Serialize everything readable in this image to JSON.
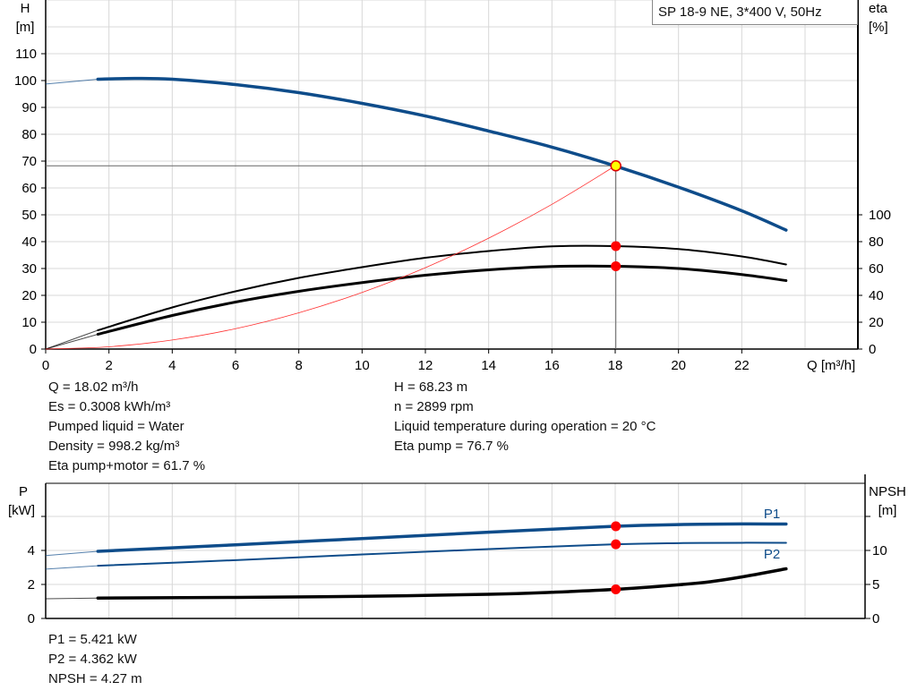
{
  "chart_data": [
    {
      "type": "line",
      "title": "SP 18-9 NE, 3*400 V, 50Hz",
      "xlabel": "Q [m³/h]",
      "ylabel_left": [
        "H",
        "[m]"
      ],
      "ylabel_right": [
        "eta",
        "[%]"
      ],
      "xlim": [
        0,
        25.7
      ],
      "ylim_left": [
        0,
        130
      ],
      "ylim_right": [
        0,
        260
      ],
      "xticks": [
        0,
        2,
        4,
        6,
        8,
        10,
        12,
        14,
        16,
        18,
        20,
        22
      ],
      "yticks_left": [
        0,
        10,
        20,
        30,
        40,
        50,
        60,
        70,
        80,
        90,
        100,
        110
      ],
      "yticks_right": [
        0,
        20,
        40,
        60,
        80,
        100
      ],
      "grid": true,
      "series": [
        {
          "key": "H",
          "axis": "left",
          "color": "#0e4c8a",
          "x": [
            0,
            1.65,
            2.8,
            4,
            6,
            8,
            10,
            12,
            14,
            16,
            18,
            20,
            22,
            23.4
          ],
          "y": [
            98.7,
            100.5,
            100.8,
            100.5,
            98.5,
            95.5,
            91.5,
            86.8,
            81.2,
            75.2,
            68.2,
            60.3,
            51.5,
            44.3
          ]
        },
        {
          "key": "eta_pump",
          "axis": "right",
          "color": "#000000",
          "x": [
            0,
            1.65,
            4,
            6,
            8,
            10,
            12,
            14,
            16,
            18,
            20,
            22,
            23.4
          ],
          "y": [
            0,
            14,
            31,
            43,
            53,
            61,
            68,
            73,
            76.5,
            76.7,
            74.5,
            69,
            63
          ]
        },
        {
          "key": "eta_pump_motor",
          "axis": "right",
          "color": "#000000",
          "x": [
            0,
            1.65,
            4,
            6,
            8,
            10,
            12,
            14,
            16,
            18,
            20,
            22,
            23.4
          ],
          "y": [
            0,
            11,
            25,
            35,
            43,
            49.5,
            55,
            59,
            61.5,
            61.7,
            60,
            55.5,
            51
          ]
        },
        {
          "key": "system",
          "axis": "left",
          "color": "#ff3030",
          "x": [
            0,
            2,
            4,
            6,
            8,
            10,
            12,
            14,
            16,
            18
          ],
          "y": [
            0,
            0.84,
            3.37,
            7.58,
            13.5,
            21.1,
            30.3,
            41.3,
            53.9,
            68.2
          ]
        }
      ],
      "operating_point": {
        "x": 18.02,
        "H": 68.23,
        "eta_pump": 76.7,
        "eta_pump_motor": 61.7
      }
    },
    {
      "type": "line",
      "ylabel_left": [
        "P",
        "[kW]"
      ],
      "ylabel_right": [
        "NPSH",
        "[m]"
      ],
      "xlim": [
        0,
        25.7
      ],
      "ylim_left": [
        0,
        8
      ],
      "ylim_right": [
        0,
        20
      ],
      "yticks_left": [
        0,
        2,
        4
      ],
      "yticks_right": [
        0,
        5,
        10
      ],
      "grid": true,
      "series": [
        {
          "name": "P1",
          "key": "P1",
          "axis": "left",
          "color": "#0e4c8a",
          "x": [
            0,
            1.65,
            6,
            10,
            14,
            18,
            20,
            22,
            23.4
          ],
          "y": [
            3.7,
            3.95,
            4.33,
            4.7,
            5.07,
            5.42,
            5.52,
            5.56,
            5.55
          ]
        },
        {
          "name": "P2",
          "key": "P2",
          "axis": "left",
          "color": "#0e4c8a",
          "x": [
            0,
            1.65,
            6,
            10,
            14,
            18,
            20,
            22,
            23.4
          ],
          "y": [
            2.9,
            3.1,
            3.43,
            3.76,
            4.08,
            4.36,
            4.43,
            4.45,
            4.45
          ]
        },
        {
          "key": "NPSH",
          "axis": "right",
          "color": "#000000",
          "x": [
            0,
            1.65,
            6,
            10,
            14,
            16,
            18,
            20,
            21,
            22,
            23.4
          ],
          "y": [
            2.9,
            3.0,
            3.1,
            3.25,
            3.55,
            3.85,
            4.27,
            4.95,
            5.4,
            6.1,
            7.3
          ]
        }
      ],
      "operating_point": {
        "x": 18.02,
        "P1": 5.421,
        "P2": 4.362,
        "NPSH": 4.27
      }
    }
  ],
  "info_top_left": [
    "Q = 18.02 m³/h",
    "Es = 0.3008 kWh/m³",
    "Pumped liquid = Water",
    "Density = 998.2 kg/m³",
    "Eta pump+motor = 61.7 %"
  ],
  "info_top_right": [
    "H = 68.23 m",
    "n = 2899 rpm",
    "Liquid temperature during operation = 20 °C",
    "Eta pump = 76.7 %"
  ],
  "info_bottom": [
    "P1 = 5.421 kW",
    "P2 = 4.362 kW",
    "NPSH = 4.27 m"
  ],
  "colors": {
    "grid": "#d8d8d8",
    "marker": "#ff0000",
    "op_marker": "#ffff00"
  }
}
